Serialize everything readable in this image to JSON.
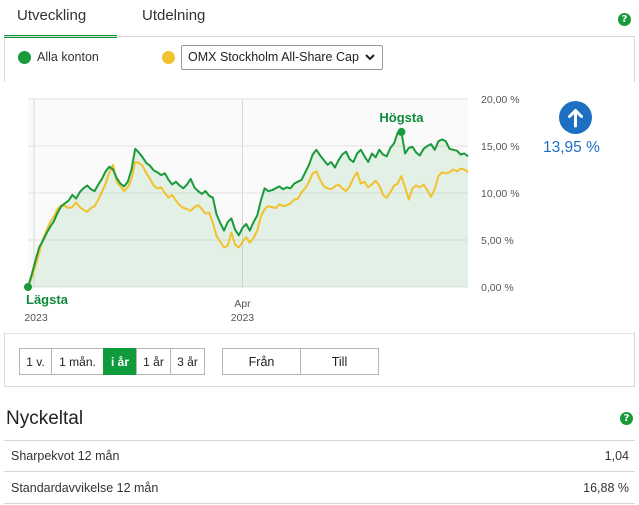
{
  "tabs": [
    {
      "label": "Utveckling",
      "active": true
    },
    {
      "label": "Utdelning",
      "active": false
    }
  ],
  "legend": {
    "series1": {
      "label": "Alla konton",
      "color": "#1a9a3a"
    },
    "compare": {
      "selected": "OMX Stockholm All-Share Cap",
      "color": "#f2c12e"
    }
  },
  "performance": {
    "value": "13,95 %",
    "direction": "up-arrow-icon",
    "color": "#1e6fc2"
  },
  "chart_data": {
    "type": "line",
    "yticks": [
      "20,00 %",
      "15,00 %",
      "10,00 %",
      "5,00 %",
      "0,00 %"
    ],
    "ylim": [
      0,
      20
    ],
    "xticks": [
      {
        "line1": "",
        "line2": "2023"
      },
      {
        "line1": "Apr",
        "line2": "2023"
      }
    ],
    "annotations": {
      "high": "Högsta",
      "low": "Lägsta"
    },
    "series": [
      {
        "name": "Alla konton",
        "color": "#1a9a3a",
        "values": [
          0.0,
          1.3,
          2.8,
          4.2,
          4.9,
          5.7,
          6.4,
          7.0,
          7.9,
          8.6,
          8.9,
          9.2,
          9.8,
          9.4,
          10.1,
          10.5,
          10.8,
          10.4,
          10.2,
          10.9,
          11.5,
          12.3,
          12.8,
          12.5,
          11.6,
          11.0,
          10.7,
          11.2,
          12.5,
          14.7,
          14.3,
          13.8,
          13.2,
          12.9,
          12.4,
          12.2,
          11.9,
          12.1,
          11.4,
          10.9,
          11.2,
          10.8,
          10.5,
          10.9,
          11.5,
          10.6,
          10.2,
          9.9,
          10.2,
          9.7,
          9.5,
          7.7,
          6.8,
          6.0,
          6.9,
          7.3,
          6.1,
          5.5,
          6.3,
          6.7,
          6.0,
          6.9,
          7.6,
          9.2,
          10.5,
          10.2,
          10.3,
          10.5,
          10.7,
          10.4,
          10.6,
          10.5,
          11.0,
          11.2,
          11.4,
          12.2,
          13.0,
          14.1,
          14.6,
          14.0,
          13.5,
          13.0,
          13.3,
          12.7,
          13.5,
          14.1,
          14.4,
          13.6,
          13.3,
          14.2,
          14.6,
          13.9,
          13.3,
          14.2,
          13.8,
          14.6,
          14.1,
          13.9,
          14.8,
          15.3,
          16.4,
          16.5,
          14.2,
          14.8,
          14.9,
          14.3,
          14.0,
          14.7,
          15.0,
          15.2,
          14.6,
          15.5,
          15.7,
          15.5,
          14.7,
          14.6,
          14.5,
          14.1,
          14.2,
          13.9
        ],
        "high_index": 101,
        "low_index": 0
      },
      {
        "name": "OMX Stockholm All-Share Cap",
        "color": "#f2c12e",
        "values": [
          0.0,
          1.0,
          2.2,
          3.6,
          5.1,
          6.0,
          6.9,
          7.5,
          8.3,
          8.7,
          8.6,
          8.4,
          8.5,
          9.0,
          8.5,
          8.2,
          8.0,
          8.4,
          8.6,
          9.3,
          10.1,
          11.0,
          12.2,
          13.0,
          11.2,
          10.7,
          10.2,
          10.6,
          11.5,
          13.3,
          13.2,
          12.9,
          12.1,
          11.5,
          10.8,
          10.5,
          10.6,
          10.0,
          9.5,
          9.8,
          9.2,
          8.7,
          8.4,
          8.3,
          8.1,
          8.5,
          8.7,
          8.3,
          7.8,
          7.9,
          6.8,
          5.4,
          4.8,
          4.2,
          4.4,
          5.8,
          4.5,
          4.2,
          4.8,
          5.3,
          4.7,
          5.2,
          6.0,
          7.5,
          8.3,
          8.6,
          8.5,
          8.4,
          8.8,
          8.6,
          8.7,
          8.9,
          9.3,
          9.4,
          10.1,
          10.5,
          11.2,
          12.1,
          12.3,
          11.4,
          10.7,
          10.5,
          10.4,
          10.7,
          10.9,
          10.5,
          10.2,
          10.7,
          11.6,
          12.2,
          11.0,
          11.2,
          10.6,
          10.9,
          11.3,
          10.8,
          9.8,
          9.5,
          10.1,
          10.8,
          11.0,
          11.8,
          10.6,
          9.3,
          10.5,
          10.8,
          10.6,
          10.9,
          10.3,
          9.6,
          10.4,
          11.8,
          12.2,
          12.1,
          12.2,
          12.5,
          12.3,
          12.6,
          12.5,
          12.2
        ]
      }
    ]
  },
  "period_buttons": [
    {
      "label": "1 v.",
      "active": false
    },
    {
      "label": "1 mån.",
      "active": false
    },
    {
      "label": "i år",
      "active": true
    },
    {
      "label": "1 år",
      "active": false
    },
    {
      "label": "3 år",
      "active": false
    }
  ],
  "range_buttons": {
    "from": "Från",
    "to": "Till"
  },
  "keyfigures": {
    "title": "Nyckeltal",
    "rows": [
      {
        "label": "Sharpekvot 12 mån",
        "value": "1,04"
      },
      {
        "label": "Standardavvikelse 12 mån",
        "value": "16,88 %"
      }
    ]
  }
}
